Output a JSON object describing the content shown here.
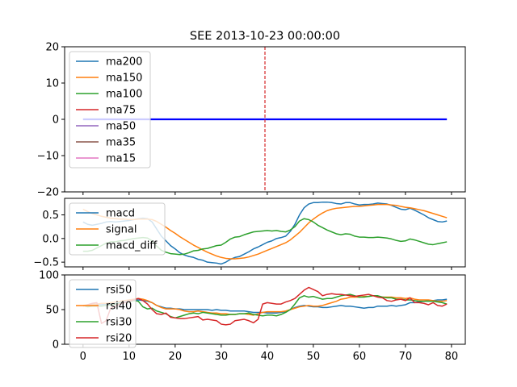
{
  "chart_data": [
    {
      "type": "line",
      "title": "SEE 2013-10-23 00:00:00",
      "xlabel": "",
      "ylabel": "",
      "xlim": [
        -4,
        83
      ],
      "ylim": [
        -20,
        20
      ],
      "yticks": [
        -20,
        -10,
        0,
        10,
        20
      ],
      "grid": false,
      "legend_position": "upper-left",
      "vline": {
        "x": 39.5,
        "color": "#d62728",
        "style": "dashed"
      },
      "legend_series": [
        {
          "name": "ma200",
          "color": "#1f77b4"
        },
        {
          "name": "ma150",
          "color": "#ff7f0e"
        },
        {
          "name": "ma100",
          "color": "#2ca02c"
        },
        {
          "name": "ma75",
          "color": "#d62728"
        },
        {
          "name": "ma50",
          "color": "#9467bd"
        },
        {
          "name": "ma35",
          "color": "#8c564b"
        },
        {
          "name": "ma15",
          "color": "#e377c2"
        }
      ],
      "series": [
        {
          "name": "",
          "color": "#0000ff",
          "x": [
            0,
            79
          ],
          "values": [
            0,
            0
          ]
        }
      ]
    },
    {
      "type": "line",
      "xlim": [
        -4,
        83
      ],
      "ylim": [
        -0.6,
        0.85
      ],
      "yticks": [
        -0.5,
        0.0,
        0.5
      ],
      "ytick_labels": [
        "−0.5",
        "0.0",
        "0.5"
      ],
      "grid": false,
      "legend_position": "upper-left",
      "series": [
        {
          "name": "macd",
          "color": "#1f77b4",
          "x_start": 0,
          "values": [
            0.35,
            0.3,
            0.28,
            0.3,
            0.32,
            0.35,
            0.36,
            0.35,
            0.36,
            0.37,
            0.38,
            0.4,
            0.42,
            0.43,
            0.42,
            0.35,
            0.2,
            0.05,
            -0.05,
            -0.15,
            -0.22,
            -0.3,
            -0.35,
            -0.38,
            -0.4,
            -0.44,
            -0.46,
            -0.5,
            -0.51,
            -0.52,
            -0.54,
            -0.5,
            -0.44,
            -0.4,
            -0.38,
            -0.33,
            -0.28,
            -0.22,
            -0.18,
            -0.13,
            -0.08,
            -0.05,
            0.0,
            0.02,
            0.05,
            0.15,
            0.3,
            0.5,
            0.65,
            0.73,
            0.76,
            0.76,
            0.77,
            0.77,
            0.76,
            0.74,
            0.73,
            0.76,
            0.76,
            0.73,
            0.71,
            0.72,
            0.72,
            0.73,
            0.75,
            0.74,
            0.73,
            0.7,
            0.66,
            0.62,
            0.61,
            0.64,
            0.6,
            0.55,
            0.5,
            0.44,
            0.4,
            0.36,
            0.35,
            0.37
          ]
        },
        {
          "name": "signal",
          "color": "#ff7f0e",
          "x_start": 0,
          "values": [
            0.62,
            0.57,
            0.53,
            0.5,
            0.47,
            0.45,
            0.43,
            0.42,
            0.41,
            0.41,
            0.4,
            0.4,
            0.41,
            0.41,
            0.41,
            0.4,
            0.36,
            0.3,
            0.24,
            0.17,
            0.11,
            0.04,
            -0.02,
            -0.08,
            -0.14,
            -0.19,
            -0.24,
            -0.29,
            -0.33,
            -0.37,
            -0.4,
            -0.42,
            -0.43,
            -0.43,
            -0.42,
            -0.41,
            -0.39,
            -0.36,
            -0.33,
            -0.29,
            -0.25,
            -0.21,
            -0.17,
            -0.13,
            -0.09,
            -0.03,
            0.05,
            0.13,
            0.23,
            0.33,
            0.41,
            0.48,
            0.54,
            0.59,
            0.62,
            0.64,
            0.65,
            0.66,
            0.67,
            0.68,
            0.68,
            0.69,
            0.7,
            0.71,
            0.72,
            0.72,
            0.72,
            0.71,
            0.7,
            0.68,
            0.66,
            0.65,
            0.63,
            0.61,
            0.59,
            0.56,
            0.53,
            0.5,
            0.47,
            0.44
          ]
        },
        {
          "name": "macd_diff",
          "color": "#2ca02c",
          "x_start": 0,
          "values": [
            -0.27,
            -0.27,
            -0.25,
            -0.2,
            -0.15,
            -0.1,
            -0.07,
            -0.07,
            -0.05,
            -0.04,
            -0.02,
            0.0,
            0.01,
            0.02,
            0.01,
            -0.05,
            -0.16,
            -0.25,
            -0.29,
            -0.32,
            -0.33,
            -0.34,
            -0.33,
            -0.3,
            -0.26,
            -0.25,
            -0.22,
            -0.21,
            -0.18,
            -0.15,
            -0.14,
            -0.08,
            -0.01,
            0.03,
            0.04,
            0.08,
            0.11,
            0.14,
            0.15,
            0.16,
            0.17,
            0.16,
            0.17,
            0.15,
            0.14,
            0.18,
            0.25,
            0.37,
            0.42,
            0.4,
            0.35,
            0.28,
            0.23,
            0.18,
            0.14,
            0.1,
            0.08,
            0.1,
            0.09,
            0.05,
            0.03,
            0.03,
            0.02,
            0.02,
            0.03,
            0.02,
            0.01,
            -0.01,
            -0.04,
            -0.06,
            -0.05,
            -0.01,
            -0.03,
            -0.06,
            -0.09,
            -0.12,
            -0.13,
            -0.11,
            -0.09,
            -0.07
          ]
        }
      ]
    },
    {
      "type": "line",
      "xlim": [
        -4,
        83
      ],
      "ylim": [
        0,
        100
      ],
      "yticks": [
        0,
        50,
        100
      ],
      "xticks": [
        0,
        10,
        20,
        30,
        40,
        50,
        60,
        70,
        80
      ],
      "grid": false,
      "legend_position": "upper-left",
      "series": [
        {
          "name": "rsi50",
          "color": "#1f77b4",
          "x_start": 0,
          "values": [
            56,
            56,
            57,
            57,
            57,
            58,
            58,
            59,
            60,
            61,
            62,
            63,
            64,
            63,
            62,
            60,
            56,
            54,
            52,
            52,
            51,
            51,
            50,
            50,
            50,
            50,
            50,
            50,
            49,
            50,
            49,
            49,
            48,
            48,
            48,
            48,
            47,
            46,
            46,
            46,
            45,
            45,
            45,
            46,
            47,
            50,
            53,
            55,
            56,
            55,
            54,
            54,
            53,
            53,
            54,
            55,
            56,
            55,
            55,
            54,
            53,
            52,
            53,
            53,
            55,
            55,
            55,
            56,
            55,
            56,
            57,
            60,
            60,
            61,
            62,
            63,
            63,
            64,
            64,
            65
          ]
        },
        {
          "name": "rsi40",
          "color": "#ff7f0e",
          "x_start": 0,
          "values": [
            56,
            57,
            58,
            58,
            59,
            59,
            60,
            61,
            62,
            63,
            64,
            65,
            66,
            65,
            63,
            60,
            56,
            53,
            51,
            51,
            51,
            50,
            48,
            47,
            47,
            48,
            47,
            46,
            45,
            45,
            44,
            44,
            43,
            43,
            44,
            44,
            43,
            42,
            44,
            46,
            47,
            47,
            47,
            47,
            48,
            50,
            52,
            54,
            55,
            56,
            55,
            55,
            56,
            58,
            60,
            62,
            65,
            66,
            68,
            68,
            68,
            69,
            69,
            70,
            69,
            68,
            68,
            68,
            67,
            67,
            66,
            67,
            65,
            64,
            64,
            64,
            63,
            62,
            62,
            63
          ]
        },
        {
          "name": "rsi30",
          "color": "#2ca02c",
          "x_start": 0,
          "values": [
            56,
            54,
            55,
            55,
            55,
            56,
            57,
            58,
            59,
            60,
            61,
            63,
            62,
            54,
            51,
            52,
            48,
            46,
            44,
            40,
            38,
            40,
            42,
            44,
            45,
            44,
            46,
            45,
            44,
            43,
            42,
            42,
            43,
            43,
            44,
            44,
            45,
            43,
            42,
            41,
            42,
            42,
            41,
            43,
            46,
            50,
            58,
            67,
            70,
            68,
            69,
            67,
            65,
            66,
            66,
            68,
            70,
            71,
            72,
            70,
            68,
            68,
            69,
            70,
            70,
            68,
            67,
            67,
            65,
            65,
            64,
            64,
            63,
            62,
            62,
            62,
            62,
            61,
            60,
            58
          ]
        },
        {
          "name": "rsi20",
          "color": "#d62728",
          "x_start": 0,
          "values": [
            55,
            57,
            59,
            60,
            30,
            34,
            52,
            55,
            58,
            60,
            62,
            64,
            66,
            63,
            58,
            50,
            44,
            43,
            45,
            39,
            38,
            37,
            37,
            38,
            39,
            40,
            35,
            36,
            35,
            34,
            29,
            28,
            29,
            34,
            35,
            36,
            34,
            31,
            36,
            58,
            60,
            59,
            58,
            58,
            61,
            63,
            66,
            72,
            78,
            82,
            79,
            76,
            70,
            72,
            73,
            72,
            72,
            71,
            70,
            69,
            70,
            71,
            72,
            70,
            68,
            67,
            63,
            62,
            64,
            65,
            63,
            67,
            60,
            60,
            59,
            57,
            60,
            56,
            55,
            58
          ]
        }
      ]
    }
  ]
}
